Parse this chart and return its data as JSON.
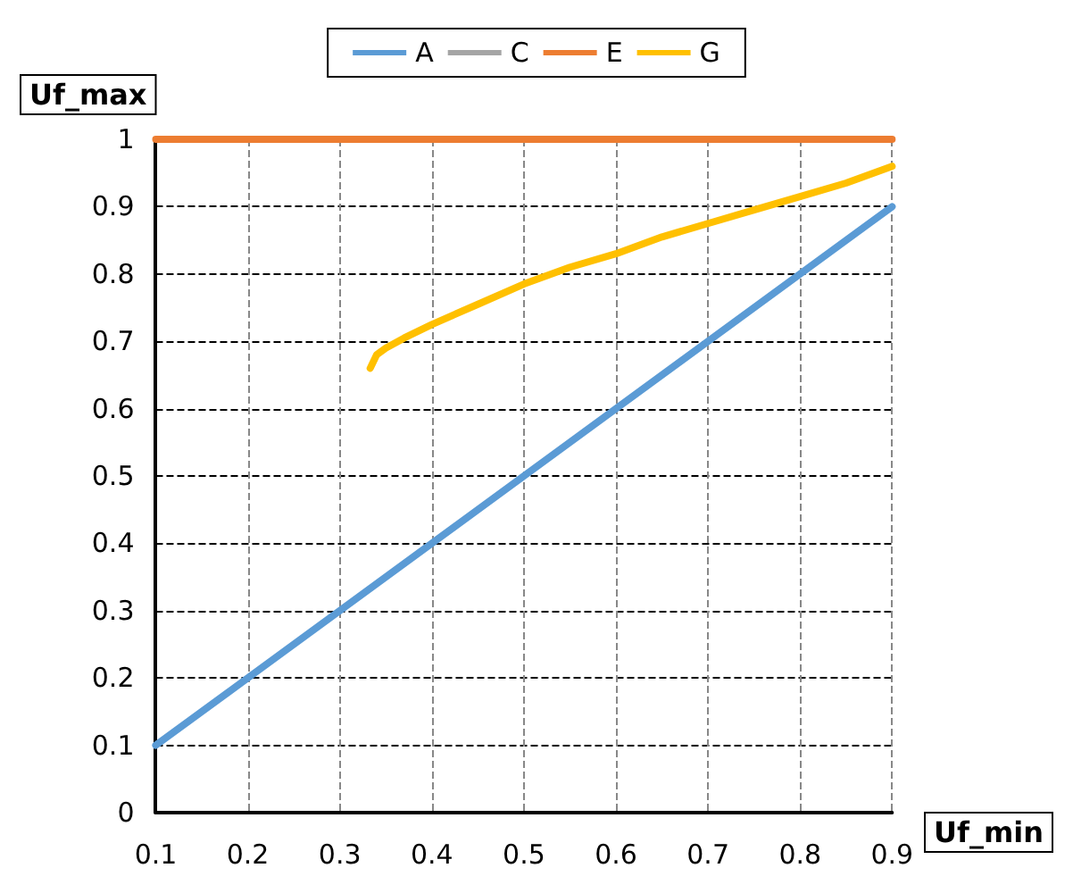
{
  "chart_data": {
    "type": "line",
    "xlabel": "Uf_min",
    "ylabel": "Uf_max",
    "xlim": [
      0.1,
      0.9
    ],
    "ylim": [
      0,
      1
    ],
    "xticks": [
      0.1,
      0.2,
      0.3,
      0.4,
      0.5,
      0.6,
      0.7,
      0.8,
      0.9
    ],
    "yticks": [
      0,
      0.1,
      0.2,
      0.3,
      0.4,
      0.5,
      0.6,
      0.7,
      0.8,
      0.9,
      1
    ],
    "grid": true,
    "legend": "top",
    "marker": "none",
    "line_style": "solid",
    "series": [
      {
        "name": "A",
        "color": "#5b9bd5",
        "x": [
          0.1,
          0.5,
          0.9
        ],
        "values": [
          0.1,
          0.5,
          0.9
        ]
      },
      {
        "name": "C",
        "color": "#a5a5a5"
      },
      {
        "name": "E",
        "color": "#ed7d31",
        "x": [
          0.1,
          0.9
        ],
        "values": [
          1,
          1
        ]
      },
      {
        "name": "G",
        "color": "#ffc000",
        "x": [
          0.333,
          0.34,
          0.35,
          0.37,
          0.4,
          0.45,
          0.5,
          0.55,
          0.6,
          0.65,
          0.7,
          0.75,
          0.8,
          0.85,
          0.9
        ],
        "values": [
          0.66,
          0.68,
          0.69,
          0.705,
          0.725,
          0.755,
          0.785,
          0.81,
          0.83,
          0.855,
          0.875,
          0.895,
          0.915,
          0.935,
          0.96
        ]
      }
    ]
  }
}
